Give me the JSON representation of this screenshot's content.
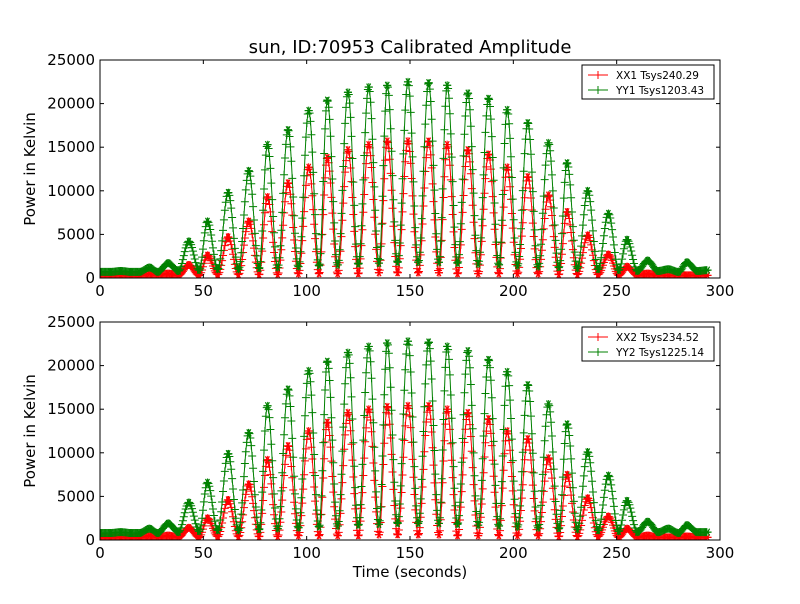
{
  "figure": {
    "title": "sun, ID:70953 Calibrated Amplitude"
  },
  "chart_data": [
    {
      "type": "line",
      "title": "sun, ID:70953 Calibrated Amplitude",
      "xlabel": "",
      "ylabel": "Power in Kelvin",
      "xlim": [
        0,
        300
      ],
      "ylim": [
        0,
        25000
      ],
      "xticks": [
        0,
        50,
        100,
        150,
        200,
        250,
        300
      ],
      "yticks": [
        0,
        5000,
        10000,
        15000,
        20000,
        25000
      ],
      "grid": false,
      "legend_position": "top-right",
      "fringe_period_s": 9.7,
      "series": [
        {
          "name": "XX1 Tsys240.29",
          "color": "#ff0000",
          "x": [
            0,
            5,
            10,
            15,
            19,
            24,
            28,
            33,
            38,
            43,
            48,
            52,
            57,
            62,
            67,
            72,
            77,
            81,
            86,
            91,
            96,
            101,
            106,
            110,
            115,
            120,
            125,
            130,
            135,
            139,
            144,
            149,
            154,
            159,
            164,
            168,
            173,
            178,
            183,
            188,
            193,
            197,
            202,
            207,
            212,
            217,
            222,
            226,
            231,
            236,
            241,
            246,
            251,
            255,
            260,
            265,
            270,
            275,
            280,
            284,
            289,
            294
          ],
          "values": [
            300,
            250,
            300,
            250,
            300,
            500,
            300,
            500,
            300,
            1500,
            300,
            2600,
            400,
            4700,
            400,
            6500,
            400,
            9300,
            400,
            10900,
            500,
            12700,
            500,
            13800,
            500,
            14700,
            500,
            15300,
            600,
            15700,
            600,
            15700,
            600,
            15700,
            600,
            15300,
            500,
            14700,
            500,
            14200,
            500,
            12700,
            500,
            11600,
            500,
            9500,
            400,
            7600,
            400,
            4900,
            400,
            2700,
            300,
            1300,
            300,
            500,
            300,
            300,
            300,
            300,
            300,
            300
          ]
        },
        {
          "name": "YY1 Tsys1203.43",
          "color": "#008000",
          "x": [
            0,
            5,
            10,
            15,
            19,
            24,
            28,
            33,
            38,
            43,
            48,
            52,
            57,
            62,
            67,
            72,
            77,
            81,
            86,
            91,
            96,
            101,
            106,
            110,
            115,
            120,
            125,
            130,
            135,
            139,
            144,
            149,
            154,
            159,
            164,
            168,
            173,
            178,
            183,
            188,
            193,
            197,
            202,
            207,
            212,
            217,
            222,
            226,
            231,
            236,
            241,
            246,
            251,
            255,
            260,
            265,
            270,
            275,
            280,
            284,
            289,
            294
          ],
          "values": [
            700,
            700,
            800,
            700,
            700,
            1200,
            700,
            1700,
            800,
            4200,
            900,
            6500,
            1000,
            9800,
            1000,
            12300,
            1100,
            15300,
            1200,
            17000,
            1300,
            19200,
            1400,
            20400,
            1500,
            21300,
            1600,
            21900,
            1700,
            22100,
            1800,
            22500,
            1800,
            22400,
            1800,
            22100,
            1700,
            21200,
            1600,
            20600,
            1500,
            19300,
            1400,
            17800,
            1300,
            15500,
            1200,
            13200,
            1100,
            10000,
            1000,
            7400,
            900,
            4400,
            800,
            2000,
            800,
            1000,
            700,
            1800,
            800,
            900
          ]
        }
      ]
    },
    {
      "type": "line",
      "title": "",
      "xlabel": "Time (seconds)",
      "ylabel": "Power in Kelvin",
      "xlim": [
        0,
        300
      ],
      "ylim": [
        0,
        25000
      ],
      "xticks": [
        0,
        50,
        100,
        150,
        200,
        250,
        300
      ],
      "yticks": [
        0,
        5000,
        10000,
        15000,
        20000,
        25000
      ],
      "grid": false,
      "legend_position": "top-right",
      "fringe_period_s": 9.7,
      "series": [
        {
          "name": "XX2 Tsys234.52",
          "color": "#ff0000",
          "x": [
            0,
            5,
            10,
            15,
            19,
            24,
            28,
            33,
            38,
            43,
            48,
            52,
            57,
            62,
            67,
            72,
            77,
            81,
            86,
            91,
            96,
            101,
            106,
            110,
            115,
            120,
            125,
            130,
            135,
            139,
            144,
            149,
            154,
            159,
            164,
            168,
            173,
            178,
            183,
            188,
            193,
            197,
            202,
            207,
            212,
            217,
            222,
            226,
            231,
            236,
            241,
            246,
            251,
            255,
            260,
            265,
            270,
            275,
            280,
            284,
            289,
            294
          ],
          "values": [
            300,
            250,
            300,
            250,
            300,
            500,
            300,
            500,
            300,
            1400,
            300,
            2500,
            400,
            4600,
            400,
            6400,
            400,
            9200,
            400,
            10800,
            500,
            12500,
            500,
            13500,
            500,
            14600,
            500,
            15000,
            600,
            15300,
            600,
            15400,
            600,
            15400,
            600,
            15000,
            500,
            14600,
            500,
            13900,
            500,
            12500,
            500,
            11600,
            500,
            9400,
            400,
            7500,
            400,
            4800,
            400,
            2700,
            300,
            1300,
            300,
            500,
            300,
            300,
            300,
            400,
            300,
            300
          ]
        },
        {
          "name": "YY2 Tsys1225.14",
          "color": "#008000",
          "x": [
            0,
            5,
            10,
            15,
            19,
            24,
            28,
            33,
            38,
            43,
            48,
            52,
            57,
            62,
            67,
            72,
            77,
            81,
            86,
            91,
            96,
            101,
            106,
            110,
            115,
            120,
            125,
            130,
            135,
            139,
            144,
            149,
            154,
            159,
            164,
            168,
            173,
            178,
            183,
            188,
            193,
            197,
            202,
            207,
            212,
            217,
            222,
            226,
            231,
            236,
            241,
            246,
            251,
            255,
            260,
            265,
            270,
            275,
            280,
            284,
            289,
            294
          ],
          "values": [
            800,
            800,
            900,
            800,
            800,
            1300,
            800,
            1900,
            900,
            4300,
            1000,
            6600,
            1100,
            9900,
            1100,
            12300,
            1200,
            15400,
            1300,
            17300,
            1400,
            19400,
            1500,
            20500,
            1600,
            21500,
            1700,
            22200,
            1800,
            22600,
            1900,
            22800,
            1900,
            22700,
            1900,
            22200,
            1800,
            21700,
            1700,
            20700,
            1600,
            19300,
            1500,
            17800,
            1400,
            15600,
            1300,
            13300,
            1200,
            10100,
            1100,
            7400,
            1000,
            4500,
            900,
            2100,
            900,
            1300,
            800,
            1700,
            900,
            900
          ]
        }
      ]
    }
  ]
}
